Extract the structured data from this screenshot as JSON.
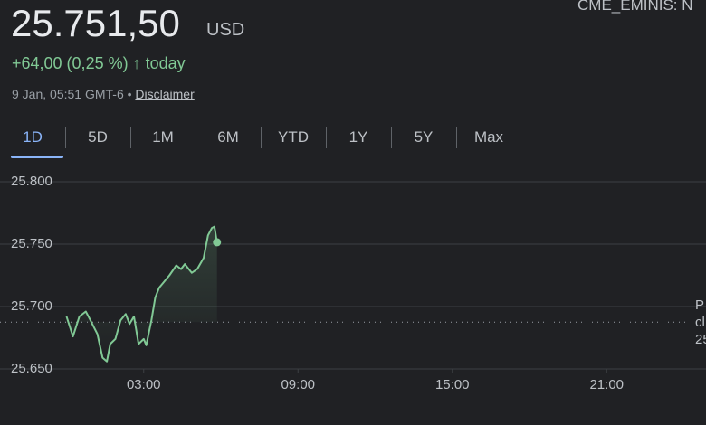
{
  "header": {
    "price": "25.751,50",
    "currency": "USD",
    "exchange": "CME_EMINIS: N",
    "change": "+64,00 (0,25 %)",
    "change_arrow": "↑",
    "change_period": "today",
    "timestamp": "9 Jan, 05:51 GMT-6 •",
    "disclaimer": "Disclaimer"
  },
  "tabs": [
    "1D",
    "5D",
    "1M",
    "6M",
    "YTD",
    "1Y",
    "5Y",
    "Max"
  ],
  "selected_tab": 0,
  "chart_data": {
    "type": "line",
    "color": "#81c995",
    "x": [
      0,
      0.25,
      0.5,
      0.75,
      0.93,
      1.2,
      1.4,
      1.57,
      1.7,
      1.9,
      2.1,
      2.3,
      2.45,
      2.62,
      2.8,
      3.0,
      3.1,
      3.3,
      3.45,
      3.6,
      3.8,
      4.0,
      4.27,
      4.45,
      4.6,
      4.87,
      5.08,
      5.33,
      5.5,
      5.65,
      5.75,
      5.85
    ],
    "values": [
      25692,
      25676,
      25692,
      25696,
      25689,
      25678,
      25659,
      25656,
      25670,
      25674,
      25689,
      25694,
      25686,
      25692,
      25670,
      25674,
      25669,
      25689,
      25707,
      25715,
      25720,
      25725,
      25733,
      25730,
      25734,
      25727,
      25730,
      25739,
      25757,
      25763,
      25764,
      25751.5
    ],
    "xlim": [
      0,
      24
    ],
    "xticks": [
      {
        "value": 3,
        "label": "03:00"
      },
      {
        "value": 9,
        "label": "09:00"
      },
      {
        "value": 15,
        "label": "15:00"
      },
      {
        "value": 21,
        "label": "21:00"
      }
    ],
    "ylim": [
      25650,
      25800
    ],
    "yticks": [
      {
        "value": 25800,
        "label": "25.800"
      },
      {
        "value": 25750,
        "label": "25.750"
      },
      {
        "value": 25700,
        "label": "25.700"
      },
      {
        "value": 25650,
        "label": "25.650"
      }
    ],
    "grid": true,
    "previous_close": 25687.5,
    "previous_close_label": [
      "P",
      "cl",
      "25"
    ]
  }
}
